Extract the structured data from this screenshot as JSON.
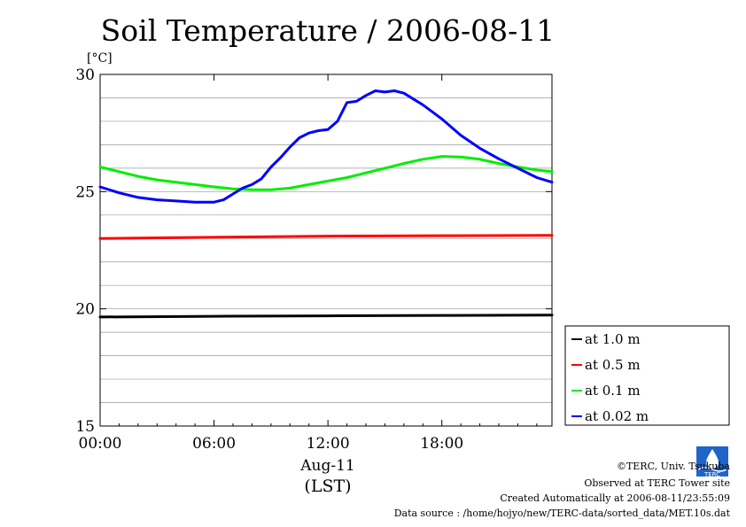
{
  "chart_data": {
    "type": "line",
    "title": "Soil Temperature / 2006-08-11",
    "ylabel": "[°C]",
    "xlabel_date": "Aug-11",
    "xlabel_tz": "(LST)",
    "ylim": [
      15,
      30
    ],
    "xlim": [
      0,
      23.8
    ],
    "yticks": [
      15,
      20,
      25,
      30
    ],
    "ytick_labels": [
      "15",
      "20",
      "25",
      "30"
    ],
    "xticks": [
      0,
      6,
      12,
      18
    ],
    "xtick_labels": [
      "00:00",
      "06:00",
      "12:00",
      "18:00"
    ],
    "grid": true,
    "legend_position": "lower-right",
    "series": [
      {
        "name": "at 1.0 m",
        "color": "#000000",
        "x": [
          0,
          6,
          12,
          18,
          23.8
        ],
        "values": [
          19.65,
          19.68,
          19.7,
          19.72,
          19.73
        ]
      },
      {
        "name": "at 0.5 m",
        "color": "#ff0000",
        "x": [
          0,
          6,
          12,
          18,
          23.8
        ],
        "values": [
          23.0,
          23.05,
          23.1,
          23.12,
          23.13
        ]
      },
      {
        "name": "at 0.1 m",
        "color": "#00ee00",
        "x": [
          0,
          1,
          2,
          3,
          4,
          5,
          6,
          7,
          8,
          9,
          10,
          11,
          12,
          13,
          14,
          15,
          16,
          17,
          18,
          19,
          20,
          21,
          22,
          23,
          23.8
        ],
        "values": [
          26.05,
          25.85,
          25.65,
          25.5,
          25.4,
          25.3,
          25.2,
          25.12,
          25.08,
          25.08,
          25.15,
          25.3,
          25.45,
          25.6,
          25.8,
          26.0,
          26.2,
          26.38,
          26.5,
          26.48,
          26.38,
          26.2,
          26.05,
          25.92,
          25.85
        ]
      },
      {
        "name": "at 0.02 m",
        "color": "#0000ff",
        "x": [
          0,
          1,
          2,
          3,
          4,
          5,
          6,
          6.5,
          7,
          7.5,
          8,
          8.5,
          9,
          9.5,
          10,
          10.5,
          11,
          11.5,
          12,
          12.5,
          13,
          13.5,
          14,
          14.5,
          15,
          15.5,
          16,
          16.5,
          17,
          17.5,
          18,
          19,
          20,
          21,
          22,
          23,
          23.8
        ],
        "values": [
          25.2,
          24.95,
          24.75,
          24.65,
          24.6,
          24.55,
          24.55,
          24.65,
          24.9,
          25.15,
          25.3,
          25.55,
          26.05,
          26.45,
          26.9,
          27.3,
          27.5,
          27.6,
          27.65,
          28.0,
          28.8,
          28.85,
          29.1,
          29.3,
          29.25,
          29.3,
          29.2,
          28.95,
          28.7,
          28.4,
          28.1,
          27.4,
          26.85,
          26.4,
          26.0,
          25.6,
          25.4
        ]
      }
    ]
  },
  "footer": {
    "copyright": "©TERC, Univ. Tsukuba",
    "observed": "Observed at TERC Tower site",
    "created": "Created Automatically at 2006-08-11/23:55:09",
    "source": "Data source : /home/hojyo/new/TERC-data/sorted_data/MET.10s.dat",
    "logo_text": "TERC"
  }
}
